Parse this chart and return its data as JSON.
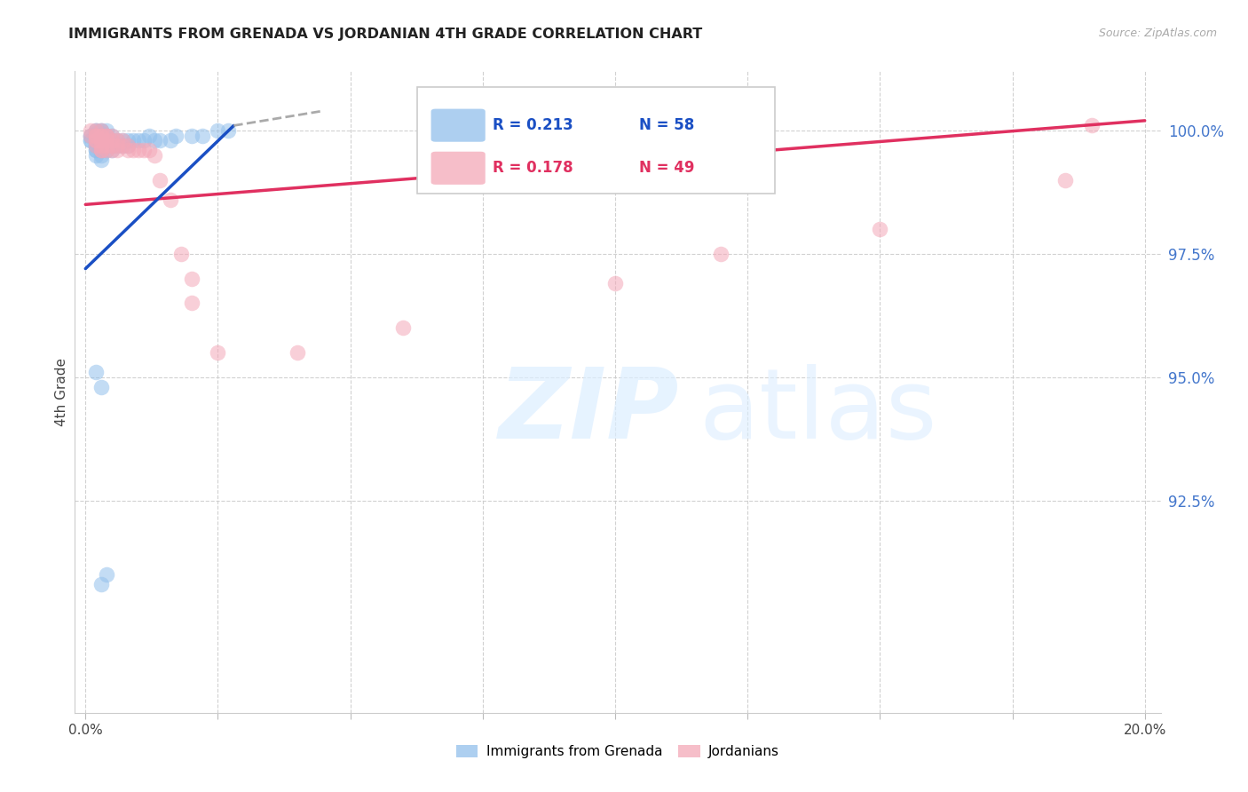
{
  "title": "IMMIGRANTS FROM GRENADA VS JORDANIAN 4TH GRADE CORRELATION CHART",
  "source": "Source: ZipAtlas.com",
  "ylabel": "4th Grade",
  "ytick_labels": [
    "100.0%",
    "97.5%",
    "95.0%",
    "92.5%"
  ],
  "ytick_values": [
    1.0,
    0.975,
    0.95,
    0.925
  ],
  "xlim": [
    -0.002,
    0.203
  ],
  "ylim": [
    0.882,
    1.012
  ],
  "legend_label_blue": "Immigrants from Grenada",
  "legend_label_pink": "Jordanians",
  "blue_color": "#92c0ec",
  "pink_color": "#f4a8b8",
  "trend_blue_color": "#1a4fc4",
  "trend_pink_color": "#e03060",
  "right_label_color": "#4477cc",
  "watermark_color": "#dceeff",
  "blue_scatter_x": [
    0.001,
    0.001,
    0.001,
    0.001,
    0.002,
    0.002,
    0.002,
    0.002,
    0.002,
    0.002,
    0.002,
    0.002,
    0.002,
    0.002,
    0.002,
    0.003,
    0.003,
    0.003,
    0.003,
    0.003,
    0.003,
    0.003,
    0.003,
    0.003,
    0.003,
    0.003,
    0.004,
    0.004,
    0.004,
    0.004,
    0.004,
    0.004,
    0.005,
    0.005,
    0.005,
    0.005,
    0.006,
    0.006,
    0.007,
    0.007,
    0.008,
    0.008,
    0.009,
    0.01,
    0.011,
    0.012,
    0.013,
    0.014,
    0.016,
    0.017,
    0.02,
    0.022,
    0.025,
    0.027,
    0.002,
    0.003,
    0.004,
    0.003
  ],
  "blue_scatter_y": [
    0.999,
    0.999,
    0.998,
    0.998,
    1.0,
    1.0,
    0.9995,
    0.999,
    0.999,
    0.998,
    0.997,
    0.997,
    0.996,
    0.996,
    0.995,
    1.0,
    1.0,
    0.9995,
    0.999,
    0.998,
    0.998,
    0.997,
    0.997,
    0.996,
    0.995,
    0.994,
    1.0,
    0.999,
    0.998,
    0.997,
    0.997,
    0.996,
    0.999,
    0.998,
    0.997,
    0.996,
    0.998,
    0.997,
    0.998,
    0.997,
    0.998,
    0.997,
    0.998,
    0.998,
    0.998,
    0.999,
    0.998,
    0.998,
    0.998,
    0.999,
    0.999,
    0.999,
    1.0,
    1.0,
    0.951,
    0.948,
    0.91,
    0.908
  ],
  "pink_scatter_x": [
    0.001,
    0.001,
    0.002,
    0.002,
    0.002,
    0.002,
    0.002,
    0.002,
    0.003,
    0.003,
    0.003,
    0.003,
    0.003,
    0.003,
    0.003,
    0.004,
    0.004,
    0.004,
    0.004,
    0.004,
    0.005,
    0.005,
    0.005,
    0.005,
    0.006,
    0.006,
    0.006,
    0.007,
    0.007,
    0.008,
    0.008,
    0.009,
    0.01,
    0.011,
    0.012,
    0.013,
    0.014,
    0.016,
    0.018,
    0.02,
    0.02,
    0.025,
    0.04,
    0.06,
    0.1,
    0.12,
    0.15,
    0.185,
    0.19
  ],
  "pink_scatter_y": [
    1.0,
    0.999,
    1.0,
    0.999,
    0.999,
    0.998,
    0.998,
    0.997,
    1.0,
    0.999,
    0.999,
    0.998,
    0.997,
    0.996,
    0.996,
    0.999,
    0.999,
    0.998,
    0.997,
    0.996,
    0.999,
    0.998,
    0.997,
    0.996,
    0.998,
    0.997,
    0.996,
    0.998,
    0.997,
    0.997,
    0.996,
    0.996,
    0.996,
    0.996,
    0.996,
    0.995,
    0.99,
    0.986,
    0.975,
    0.97,
    0.965,
    0.955,
    0.955,
    0.96,
    0.969,
    0.975,
    0.98,
    0.99,
    1.001
  ],
  "blue_trend_x0": 0.0,
  "blue_trend_y0": 0.972,
  "blue_trend_x1": 0.028,
  "blue_trend_y1": 1.001,
  "blue_trend_dash_x0": 0.028,
  "blue_trend_dash_y0": 1.001,
  "blue_trend_dash_x1": 0.045,
  "blue_trend_dash_y1": 1.004,
  "pink_trend_x0": 0.0,
  "pink_trend_y0": 0.985,
  "pink_trend_x1": 0.2,
  "pink_trend_y1": 1.002
}
